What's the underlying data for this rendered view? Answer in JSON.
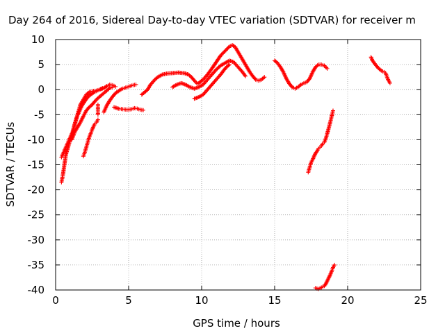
{
  "chart_data": {
    "type": "scatter",
    "title": "Day 264 of 2016, Sidereal Day-to-day VTEC variation (SDTVAR) for receiver m",
    "xlabel": "GPS time / hours",
    "ylabel": "SDTVAR / TECUs",
    "xlim": [
      0,
      25
    ],
    "ylim": [
      -40,
      10
    ],
    "xticks": [
      "0",
      "5",
      "10",
      "15",
      "20",
      "25"
    ],
    "yticks": [
      "10",
      "5",
      "0",
      "-5",
      "-10",
      "-15",
      "-20",
      "-25",
      "-30",
      "-35",
      "-40"
    ],
    "grid": true,
    "legend": "none",
    "marker": "+",
    "color": "#ff0000",
    "series": [
      {
        "points": [
          [
            0.4,
            -18.5
          ],
          [
            0.5,
            -17
          ],
          [
            0.6,
            -15
          ],
          [
            0.7,
            -13
          ],
          [
            0.85,
            -11.5
          ],
          [
            1.0,
            -10
          ],
          [
            1.15,
            -9
          ],
          [
            1.3,
            -7
          ],
          [
            1.5,
            -5
          ],
          [
            1.7,
            -3
          ],
          [
            1.9,
            -2
          ],
          [
            2.1,
            -1
          ],
          [
            2.3,
            -0.5
          ],
          [
            2.5,
            -0.3
          ],
          [
            2.8,
            -0.2
          ],
          [
            3.0,
            0
          ],
          [
            3.3,
            0.3
          ],
          [
            3.5,
            0.7
          ],
          [
            3.7,
            1.0
          ],
          [
            3.9,
            0.9
          ],
          [
            4.1,
            0.6
          ]
        ]
      },
      {
        "points": [
          [
            0.4,
            -13.5
          ],
          [
            0.55,
            -12.5
          ],
          [
            0.7,
            -11.5
          ],
          [
            0.85,
            -10.5
          ],
          [
            1.0,
            -9.5
          ],
          [
            1.15,
            -8.5
          ],
          [
            1.3,
            -7
          ],
          [
            1.45,
            -5.5
          ],
          [
            1.6,
            -4.5
          ],
          [
            1.8,
            -3.2
          ],
          [
            2.0,
            -2.3
          ],
          [
            2.2,
            -1.5
          ],
          [
            2.4,
            -1.0
          ],
          [
            2.6,
            -0.6
          ],
          [
            2.8,
            -0.3
          ],
          [
            3.0,
            0
          ],
          [
            3.2,
            0.3
          ]
        ]
      },
      {
        "points": [
          [
            1.1,
            -10
          ],
          [
            1.3,
            -8.5
          ],
          [
            1.5,
            -7.5
          ],
          [
            1.7,
            -6.5
          ],
          [
            1.9,
            -5.3
          ],
          [
            2.1,
            -4.2
          ],
          [
            2.3,
            -3.5
          ],
          [
            2.5,
            -3.0
          ],
          [
            2.7,
            -2.3
          ],
          [
            2.9,
            -1.7
          ],
          [
            3.1,
            -1.2
          ],
          [
            3.3,
            -0.7
          ],
          [
            3.5,
            -0.2
          ],
          [
            3.7,
            0.3
          ],
          [
            3.9,
            0.5
          ]
        ]
      },
      {
        "points": [
          [
            1.9,
            -13.3
          ],
          [
            2.0,
            -12.5
          ],
          [
            2.1,
            -11.5
          ],
          [
            2.2,
            -10.5
          ],
          [
            2.3,
            -9.5
          ],
          [
            2.4,
            -8.8
          ],
          [
            2.5,
            -8.0
          ],
          [
            2.6,
            -7.3
          ],
          [
            2.7,
            -6.8
          ],
          [
            2.8,
            -6.5
          ],
          [
            2.9,
            -6.0
          ]
        ]
      },
      {
        "points": [
          [
            2.9,
            -3.0
          ],
          [
            2.9,
            -4.0
          ],
          [
            2.9,
            -5.0
          ]
        ]
      },
      {
        "points": [
          [
            3.3,
            -4.5
          ],
          [
            3.5,
            -3.2
          ],
          [
            3.7,
            -2.2
          ],
          [
            3.9,
            -1.4
          ],
          [
            4.1,
            -0.7
          ],
          [
            4.3,
            -0.3
          ],
          [
            4.5,
            0.1
          ],
          [
            4.7,
            0.3
          ],
          [
            4.9,
            0.5
          ],
          [
            5.1,
            0.7
          ],
          [
            5.3,
            0.9
          ],
          [
            5.5,
            1.0
          ]
        ]
      },
      {
        "points": [
          [
            4.0,
            -3.5
          ],
          [
            4.3,
            -3.8
          ],
          [
            4.6,
            -3.9
          ],
          [
            4.9,
            -4.0
          ],
          [
            5.2,
            -3.9
          ],
          [
            5.4,
            -3.7
          ],
          [
            5.6,
            -3.8
          ],
          [
            5.8,
            -4.0
          ],
          [
            6.0,
            -4.1
          ]
        ]
      },
      {
        "points": [
          [
            5.9,
            -1.0
          ],
          [
            6.1,
            -0.5
          ],
          [
            6.3,
            0
          ],
          [
            6.5,
            1.0
          ],
          [
            6.8,
            2.0
          ],
          [
            7.0,
            2.5
          ],
          [
            7.3,
            3.0
          ],
          [
            7.6,
            3.2
          ],
          [
            8.0,
            3.3
          ],
          [
            8.4,
            3.4
          ],
          [
            8.8,
            3.3
          ],
          [
            9.1,
            3.0
          ],
          [
            9.3,
            2.5
          ],
          [
            9.5,
            1.8
          ],
          [
            9.7,
            1.2
          ]
        ]
      },
      {
        "points": [
          [
            8.0,
            0.5
          ],
          [
            8.3,
            1.0
          ],
          [
            8.6,
            1.3
          ],
          [
            8.9,
            1.0
          ],
          [
            9.2,
            0.5
          ],
          [
            9.5,
            0.2
          ],
          [
            9.8,
            0.5
          ],
          [
            10.1,
            1.0
          ],
          [
            10.4,
            2.0
          ],
          [
            10.7,
            3.0
          ],
          [
            11.0,
            4.0
          ],
          [
            11.3,
            4.8
          ],
          [
            11.6,
            5.3
          ],
          [
            11.9,
            5.8
          ],
          [
            12.2,
            5.5
          ],
          [
            12.5,
            4.5
          ],
          [
            12.8,
            3.5
          ],
          [
            13.0,
            2.7
          ]
        ]
      },
      {
        "points": [
          [
            9.5,
            -1.8
          ],
          [
            9.8,
            -1.5
          ],
          [
            10.1,
            -1.0
          ],
          [
            10.4,
            0
          ],
          [
            10.7,
            1.0
          ],
          [
            11.0,
            2.0
          ],
          [
            11.3,
            3.0
          ],
          [
            11.5,
            3.8
          ],
          [
            11.7,
            4.5
          ],
          [
            11.9,
            5.0
          ]
        ]
      },
      {
        "points": [
          [
            9.8,
            1.3
          ],
          [
            10.1,
            2.0
          ],
          [
            10.4,
            3.0
          ],
          [
            10.7,
            4.2
          ],
          [
            11.0,
            5.5
          ],
          [
            11.3,
            6.8
          ],
          [
            11.6,
            7.7
          ],
          [
            11.9,
            8.6
          ],
          [
            12.1,
            8.9
          ],
          [
            12.3,
            8.5
          ],
          [
            12.5,
            7.5
          ],
          [
            12.7,
            6.5
          ],
          [
            12.9,
            5.5
          ],
          [
            13.1,
            4.5
          ],
          [
            13.3,
            3.5
          ],
          [
            13.5,
            2.7
          ],
          [
            13.7,
            2.0
          ],
          [
            13.9,
            1.8
          ],
          [
            14.1,
            2.0
          ],
          [
            14.3,
            2.5
          ]
        ]
      },
      {
        "points": [
          [
            15.0,
            5.8
          ],
          [
            15.2,
            5.3
          ],
          [
            15.4,
            4.5
          ],
          [
            15.6,
            3.5
          ],
          [
            15.8,
            2.2
          ],
          [
            16.0,
            1.2
          ],
          [
            16.2,
            0.5
          ],
          [
            16.4,
            0.2
          ],
          [
            16.6,
            0.5
          ],
          [
            16.8,
            1.0
          ],
          [
            17.0,
            1.3
          ],
          [
            17.2,
            1.5
          ],
          [
            17.4,
            2.2
          ],
          [
            17.6,
            3.5
          ],
          [
            17.8,
            4.5
          ],
          [
            18.0,
            5.0
          ],
          [
            18.2,
            5.0
          ],
          [
            18.4,
            4.8
          ],
          [
            18.6,
            4.2
          ]
        ]
      },
      {
        "points": [
          [
            17.3,
            -16.5
          ],
          [
            17.4,
            -15.5
          ],
          [
            17.5,
            -14.5
          ],
          [
            17.6,
            -14.0
          ],
          [
            17.7,
            -13.3
          ],
          [
            17.8,
            -12.7
          ],
          [
            17.9,
            -12.3
          ],
          [
            18.0,
            -11.8
          ],
          [
            18.1,
            -11.5
          ],
          [
            18.2,
            -11.2
          ],
          [
            18.3,
            -10.8
          ],
          [
            18.4,
            -10.5
          ],
          [
            18.5,
            -9.8
          ],
          [
            18.6,
            -8.8
          ],
          [
            18.7,
            -7.7
          ],
          [
            18.8,
            -6.6
          ],
          [
            18.9,
            -5.4
          ],
          [
            19.0,
            -4.2
          ]
        ]
      },
      {
        "points": [
          [
            17.8,
            -39.6
          ],
          [
            18.0,
            -39.8
          ],
          [
            18.2,
            -39.5
          ],
          [
            18.4,
            -39.2
          ],
          [
            18.5,
            -38.8
          ],
          [
            18.6,
            -38.2
          ],
          [
            18.7,
            -37.6
          ],
          [
            18.8,
            -37.0
          ],
          [
            18.9,
            -36.3
          ],
          [
            19.0,
            -35.5
          ],
          [
            19.1,
            -35.0
          ]
        ]
      },
      {
        "points": [
          [
            21.6,
            6.5
          ],
          [
            21.7,
            5.8
          ],
          [
            21.9,
            5.0
          ],
          [
            22.1,
            4.3
          ],
          [
            22.3,
            3.8
          ],
          [
            22.5,
            3.5
          ],
          [
            22.6,
            3.3
          ],
          [
            22.7,
            2.5
          ],
          [
            22.8,
            1.8
          ],
          [
            22.9,
            1.3
          ]
        ]
      }
    ]
  }
}
